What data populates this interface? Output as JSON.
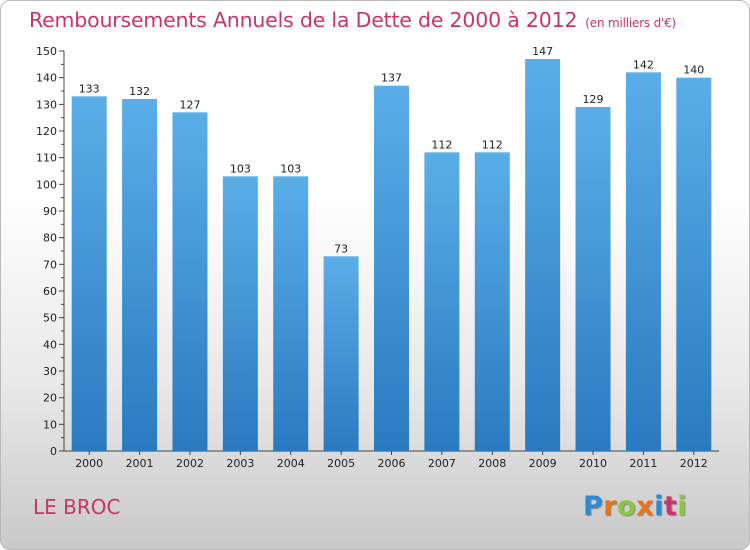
{
  "header": {
    "title": "Remboursements Annuels de la Dette de 2000 à 2012",
    "unit": "(en milliers d'€)"
  },
  "footer": {
    "commune": "LE BROC",
    "logo_letters": [
      "P",
      "r",
      "o",
      "x",
      "i",
      "t",
      "i"
    ],
    "logo_colors": [
      "#2d8ad1",
      "#e8731a",
      "#8dc63f",
      "#e8731a",
      "#2d8ad1",
      "#cc3366",
      "#8dc63f"
    ]
  },
  "chart_data": {
    "type": "bar",
    "title": "Remboursements Annuels de la Dette de 2000 à 2012",
    "categories": [
      "2000",
      "2001",
      "2002",
      "2003",
      "2004",
      "2005",
      "2006",
      "2007",
      "2008",
      "2009",
      "2010",
      "2011",
      "2012"
    ],
    "values": [
      133,
      132,
      127,
      103,
      103,
      73,
      137,
      112,
      112,
      147,
      129,
      142,
      140
    ],
    "ylim": [
      0,
      150
    ],
    "yticks": [
      0,
      10,
      20,
      30,
      40,
      50,
      60,
      70,
      80,
      90,
      100,
      110,
      120,
      130,
      140,
      150
    ],
    "grid": false,
    "bar_color": "#3a8fd6",
    "xlabel": "",
    "ylabel": ""
  }
}
